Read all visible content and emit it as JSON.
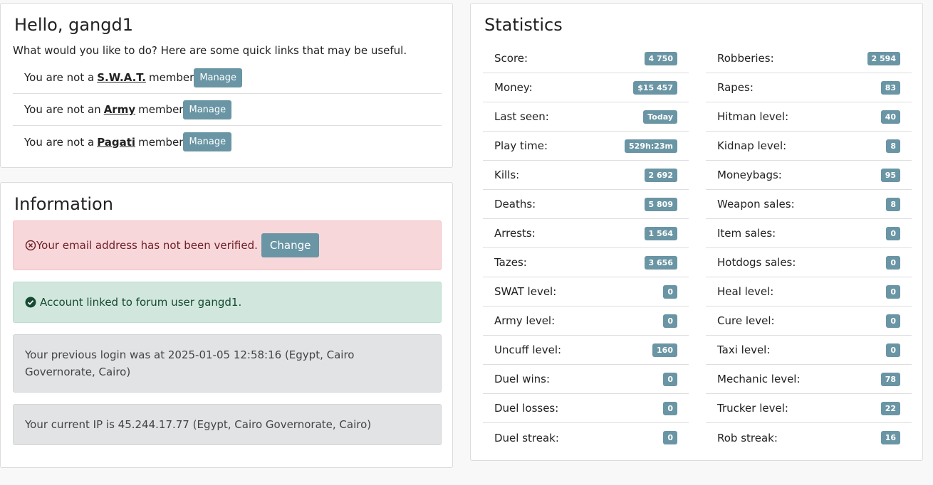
{
  "greeting": {
    "title": "Hello, gangd1",
    "subtitle": "What would you like to do? Here are some quick links that may be useful.",
    "memberships": [
      {
        "prefix": "You are not a",
        "group": "S.W.A.T.",
        "suffix": "member",
        "button": "Manage"
      },
      {
        "prefix": "You are not an",
        "group": "Army",
        "suffix": "member",
        "button": "Manage"
      },
      {
        "prefix": "You are not a",
        "group": "Pagati",
        "suffix": "member",
        "button": "Manage"
      }
    ]
  },
  "information": {
    "title": "Information",
    "email_alert": "Your email address has not been verified.",
    "email_button": "Change",
    "forum_alert": "Account linked to forum user gangd1.",
    "previous_login": "Your previous login was at 2025-01-05 12:58:16 (Egypt, Cairo Governorate, Cairo)",
    "current_ip": "Your current IP is 45.244.17.77 (Egypt, Cairo Governorate, Cairo)"
  },
  "statistics": {
    "title": "Statistics",
    "left": [
      [
        "Score:",
        "4 750"
      ],
      [
        "Money:",
        "$15 457"
      ],
      [
        "Last seen:",
        "Today"
      ],
      [
        "Play time:",
        "529h:23m"
      ],
      [
        "Kills:",
        "2 692"
      ],
      [
        "Deaths:",
        "5 809"
      ],
      [
        "Arrests:",
        "1 564"
      ],
      [
        "Tazes:",
        "3 656"
      ],
      [
        "SWAT level:",
        "0"
      ],
      [
        "Army level:",
        "0"
      ],
      [
        "Uncuff level:",
        "160"
      ],
      [
        "Duel wins:",
        "0"
      ],
      [
        "Duel losses:",
        "0"
      ],
      [
        "Duel streak:",
        "0"
      ]
    ],
    "right": [
      [
        "Robberies:",
        "2 594"
      ],
      [
        "Rapes:",
        "83"
      ],
      [
        "Hitman level:",
        "40"
      ],
      [
        "Kidnap level:",
        "8"
      ],
      [
        "Moneybags:",
        "95"
      ],
      [
        "Weapon sales:",
        "8"
      ],
      [
        "Item sales:",
        "0"
      ],
      [
        "Hotdogs sales:",
        "0"
      ],
      [
        "Heal level:",
        "0"
      ],
      [
        "Cure level:",
        "0"
      ],
      [
        "Taxi level:",
        "0"
      ],
      [
        "Mechanic level:",
        "78"
      ],
      [
        "Trucker level:",
        "22"
      ],
      [
        "Rob streak:",
        "16"
      ]
    ]
  }
}
